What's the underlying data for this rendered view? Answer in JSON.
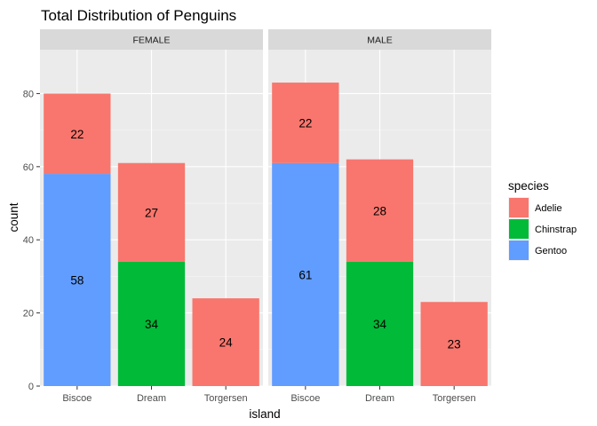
{
  "chart_data": {
    "type": "bar",
    "stacked": true,
    "title": "Total Distribution of Penguins",
    "xlabel": "island",
    "ylabel": "count",
    "ylim": [
      0,
      92
    ],
    "yticks": [
      0,
      20,
      40,
      60,
      80
    ],
    "grid": true,
    "categories": [
      "Biscoe",
      "Dream",
      "Torgersen"
    ],
    "legend": {
      "title": "species",
      "position": "right",
      "entries": [
        {
          "name": "Adelie",
          "color": "#F8766D"
        },
        {
          "name": "Chinstrap",
          "color": "#00BA38"
        },
        {
          "name": "Gentoo",
          "color": "#619CFF"
        }
      ]
    },
    "facets": [
      {
        "label": "FEMALE",
        "series": [
          {
            "name": "Gentoo",
            "values": [
              58,
              0,
              0
            ]
          },
          {
            "name": "Chinstrap",
            "values": [
              0,
              34,
              0
            ]
          },
          {
            "name": "Adelie",
            "values": [
              22,
              27,
              24
            ]
          }
        ]
      },
      {
        "label": "MALE",
        "series": [
          {
            "name": "Gentoo",
            "values": [
              61,
              0,
              0
            ]
          },
          {
            "name": "Chinstrap",
            "values": [
              0,
              34,
              0
            ]
          },
          {
            "name": "Adelie",
            "values": [
              22,
              28,
              23
            ]
          }
        ]
      }
    ]
  }
}
